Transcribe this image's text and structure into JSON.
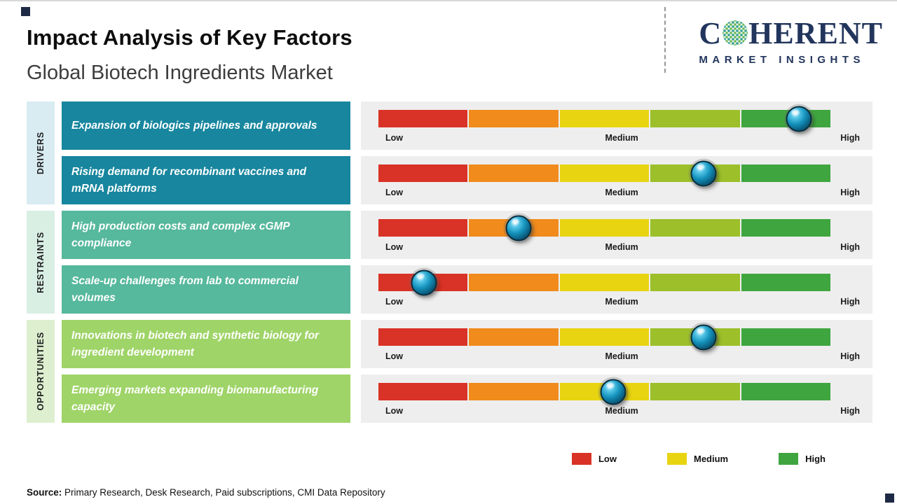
{
  "page": {
    "title": "Impact Analysis of Key Factors",
    "subtitle": "Global Biotech Ingredients Market"
  },
  "logo": {
    "brand_prefix": "C",
    "brand_suffix": "HERENT",
    "tagline": "MARKET INSIGHTS"
  },
  "axis": {
    "low": "Low",
    "medium": "Medium",
    "high": "High"
  },
  "chart_data": {
    "type": "bar",
    "title": "Impact Analysis of Key Factors",
    "subtitle": "Global Biotech Ingredients Market",
    "scale": {
      "labels": [
        "Low",
        "Medium",
        "High"
      ],
      "range_percent": [
        0,
        100
      ]
    },
    "segment_colors": [
      "#d93226",
      "#f08b1c",
      "#e8d411",
      "#9cbf2a",
      "#3fa63f"
    ],
    "groups": [
      {
        "category": "DRIVERS",
        "factors": [
          {
            "label": "Expansion of biologics pipelines and approvals",
            "impact_percent": 93,
            "impact_level": "High",
            "marker_left": "93%"
          },
          {
            "label": "Rising demand for recombinant vaccines and mRNA platforms",
            "impact_percent": 72,
            "impact_level": "Medium-High",
            "marker_left": "72%"
          }
        ]
      },
      {
        "category": "RESTRAINTS",
        "factors": [
          {
            "label": "High production costs and complex cGMP compliance",
            "impact_percent": 31,
            "impact_level": "Low-Medium",
            "marker_left": "31%"
          },
          {
            "label": "Scale-up challenges from lab to commercial volumes",
            "impact_percent": 10,
            "impact_level": "Low",
            "marker_left": "10%"
          }
        ]
      },
      {
        "category": "OPPORTUNITIES",
        "factors": [
          {
            "label": "Innovations in biotech and synthetic biology for ingredient development",
            "impact_percent": 72,
            "impact_level": "Medium-High",
            "marker_left": "72%"
          },
          {
            "label": "Emerging markets expanding biomanufacturing capacity",
            "impact_percent": 52,
            "impact_level": "Medium",
            "marker_left": "52%"
          }
        ]
      }
    ]
  },
  "legend": {
    "items": [
      {
        "label": "Low",
        "color": "#d93226"
      },
      {
        "label": "Medium",
        "color": "#e8d411"
      },
      {
        "label": "High",
        "color": "#3fa63f"
      }
    ]
  },
  "footer": {
    "source_label": "Source:",
    "source_text": " Primary Research, Desk Research, Paid subscriptions, CMI Data Repository"
  },
  "colors": {
    "driver_box": "#17869e",
    "restraint_box": "#56b89c",
    "opportunity_box": "#9fd468",
    "driver_tab": "#d8ecf2",
    "restraint_tab": "#d9efe4",
    "opportunity_tab": "#ddefcf",
    "brand_navy": "#22355c",
    "bar_strip_bg": "#eeeeee"
  }
}
